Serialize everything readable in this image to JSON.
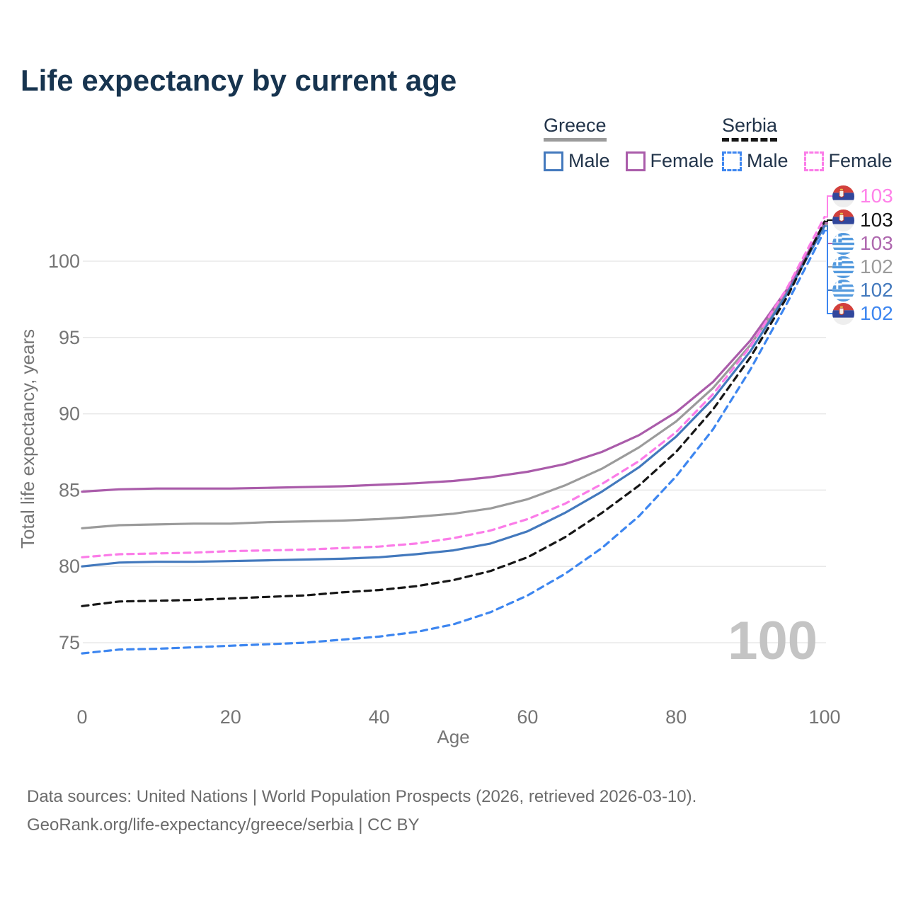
{
  "title": "Life expectancy by current age",
  "colors": {
    "title_text": "#17344f",
    "legend_text": "#22344a",
    "axis_text": "#757575",
    "grid": "#e8e8e8",
    "watermark": "#c4c4c4",
    "footer_text": "#6b6b6b",
    "greece_male": "#4379bd",
    "greece_female": "#aa5caa",
    "greece_both": "#9b9b9b",
    "serbia_male": "#3d86f0",
    "serbia_female": "#fb7ce8",
    "serbia_both": "#161616"
  },
  "legend": {
    "groups": [
      {
        "label": "Greece",
        "line_style": "solid",
        "underline_color": "#9b9b9b",
        "items": [
          {
            "label": "Male",
            "color": "#4379bd"
          },
          {
            "label": "Female",
            "color": "#aa5caa"
          }
        ]
      },
      {
        "label": "Serbia",
        "line_style": "dashed",
        "underline_color": "#161616",
        "items": [
          {
            "label": "Male",
            "color": "#3d86f0"
          },
          {
            "label": "Female",
            "color": "#fb7ce8"
          }
        ]
      }
    ]
  },
  "chart_data": {
    "type": "line",
    "title": "Life expectancy by current age",
    "xlabel": "Age",
    "ylabel": "Total life expectancy, years",
    "x_ticks": [
      0,
      20,
      40,
      60,
      80,
      100
    ],
    "y_ticks": [
      75,
      80,
      85,
      90,
      95,
      100
    ],
    "xlim": [
      0,
      100
    ],
    "ylim": [
      73.5,
      103.5
    ],
    "grid": "horizontal",
    "legend_position": "top-right",
    "age_counter_watermark": "100",
    "ages": [
      0,
      5,
      10,
      15,
      20,
      25,
      30,
      35,
      40,
      45,
      50,
      55,
      60,
      65,
      70,
      75,
      80,
      85,
      90,
      95,
      100
    ],
    "series": [
      {
        "name": "Greece",
        "country": "Greece",
        "sex": "Both sexes",
        "line_style": "solid",
        "color": "#9b9b9b",
        "flag": "greece",
        "end_label": "102",
        "values": [
          82.5,
          82.7,
          82.75,
          82.8,
          82.8,
          82.9,
          82.95,
          83.0,
          83.1,
          83.25,
          83.45,
          83.8,
          84.4,
          85.3,
          86.4,
          87.8,
          89.5,
          91.7,
          94.5,
          98.0,
          102.4
        ]
      },
      {
        "name": "Greece Female",
        "country": "Greece",
        "sex": "Female",
        "line_style": "solid",
        "color": "#aa5caa",
        "flag": "greece",
        "end_label": "103",
        "values": [
          84.9,
          85.05,
          85.1,
          85.1,
          85.1,
          85.15,
          85.2,
          85.25,
          85.35,
          85.45,
          85.6,
          85.85,
          86.2,
          86.7,
          87.5,
          88.6,
          90.1,
          92.1,
          94.8,
          98.2,
          102.5
        ]
      },
      {
        "name": "Greece Male",
        "country": "Greece",
        "sex": "Male",
        "line_style": "solid",
        "color": "#4379bd",
        "flag": "greece",
        "end_label": "102",
        "values": [
          80.0,
          80.25,
          80.3,
          80.3,
          80.35,
          80.4,
          80.45,
          80.5,
          80.6,
          80.8,
          81.05,
          81.5,
          82.3,
          83.5,
          84.9,
          86.5,
          88.5,
          91.0,
          94.1,
          97.9,
          102.3
        ]
      },
      {
        "name": "Serbia Male",
        "country": "Serbia",
        "sex": "Male",
        "line_style": "dashed",
        "color": "#3d86f0",
        "flag": "serbia",
        "end_label": "102",
        "values": [
          74.3,
          74.55,
          74.6,
          74.7,
          74.8,
          74.9,
          75.0,
          75.2,
          75.4,
          75.7,
          76.2,
          77.0,
          78.1,
          79.5,
          81.2,
          83.3,
          85.9,
          89.0,
          92.9,
          97.3,
          102.0
        ]
      },
      {
        "name": "Serbia",
        "country": "Serbia",
        "sex": "Both sexes",
        "line_style": "dashed",
        "color": "#161616",
        "flag": "serbia",
        "end_label": "103",
        "values": [
          77.4,
          77.7,
          77.75,
          77.8,
          77.9,
          78.0,
          78.1,
          78.3,
          78.45,
          78.7,
          79.1,
          79.7,
          80.6,
          81.9,
          83.5,
          85.3,
          87.5,
          90.3,
          93.7,
          97.7,
          102.6
        ]
      },
      {
        "name": "Serbia Female",
        "country": "Serbia",
        "sex": "Female",
        "line_style": "dashed",
        "color": "#fb7ce8",
        "flag": "serbia",
        "end_label": "103",
        "values": [
          80.6,
          80.8,
          80.85,
          80.9,
          81.0,
          81.05,
          81.1,
          81.2,
          81.3,
          81.5,
          81.85,
          82.35,
          83.1,
          84.1,
          85.4,
          86.9,
          88.8,
          91.3,
          94.4,
          98.3,
          102.9
        ]
      }
    ],
    "right_labels": [
      {
        "series": "Serbia Female",
        "flag": "serbia",
        "value": "103",
        "color": "#ff82e9"
      },
      {
        "series": "Serbia",
        "flag": "serbia",
        "value": "103",
        "color": "#161616"
      },
      {
        "series": "Greece Female",
        "flag": "greece",
        "value": "103",
        "color": "#ae67ae"
      },
      {
        "series": "Greece",
        "flag": "greece",
        "value": "102",
        "color": "#9b9b9b"
      },
      {
        "series": "Greece Male",
        "flag": "greece",
        "value": "102",
        "color": "#4379bd"
      },
      {
        "series": "Serbia Male",
        "flag": "serbia",
        "value": "102",
        "color": "#3d86f0"
      }
    ]
  },
  "footer": {
    "line1": "Data sources: United Nations | World Population Prospects (2026, retrieved 2026-03-10).",
    "line2": "GeoRank.org/life-expectancy/greece/serbia | CC BY"
  }
}
